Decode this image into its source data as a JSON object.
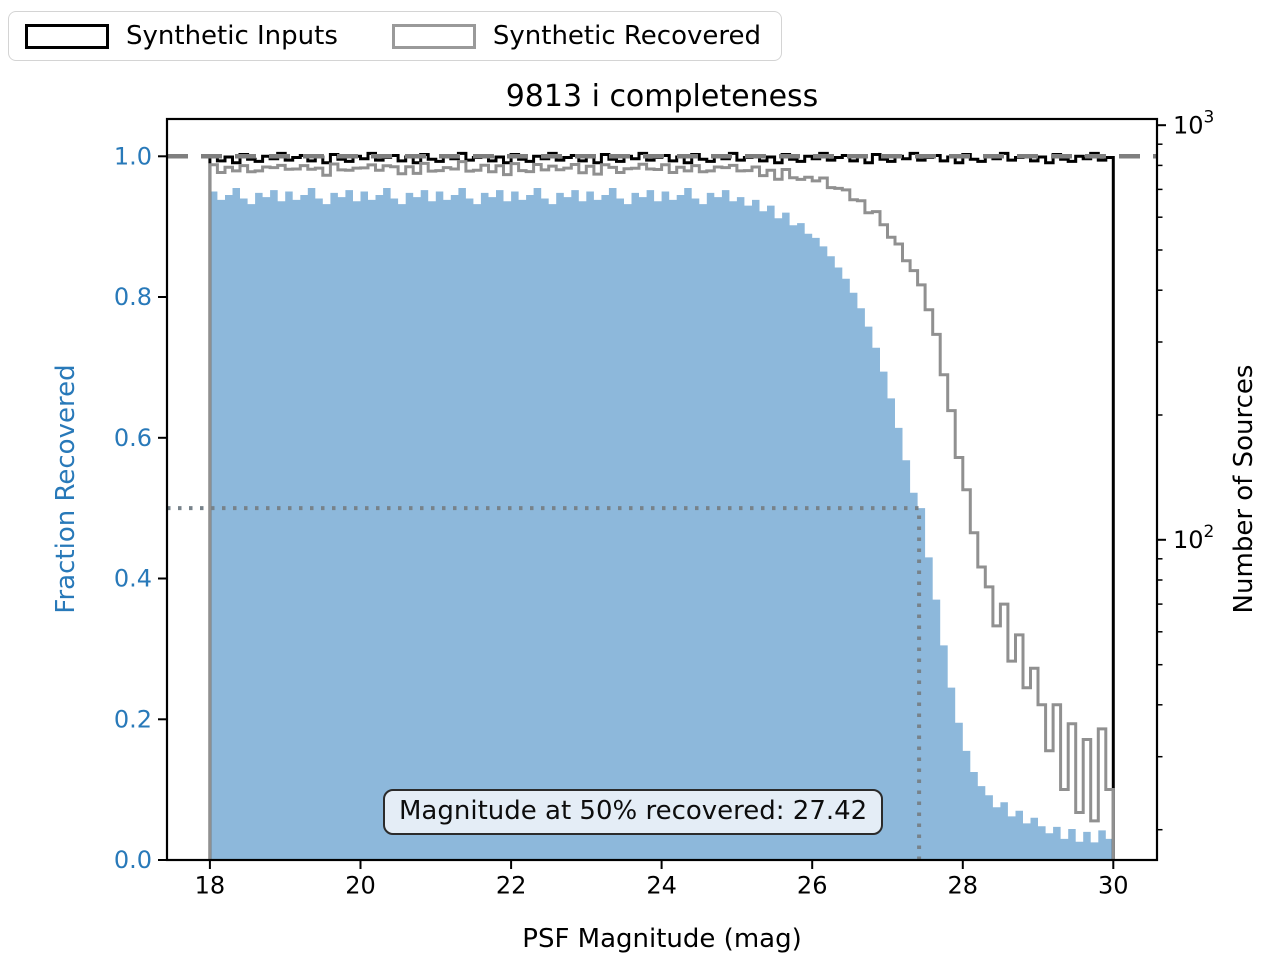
{
  "figure": {
    "title": "9813 i completeness",
    "annotation": "Magnitude at 50% recovered: 27.42",
    "legend": [
      {
        "label": "Synthetic Inputs",
        "color": "#000000"
      },
      {
        "label": "Synthetic Recovered",
        "color": "#9a9a9a"
      }
    ],
    "colors": {
      "fraction_fill": "#8db8db",
      "inputs_line": "#000000",
      "recovered_line": "#909090",
      "dashed_reference": "#7f7f7f",
      "dotted_crosshair": "#77828a",
      "left_axis_text": "#2879b9"
    }
  },
  "chart_data": {
    "type": "bar",
    "subtype": "completeness-histogram-with-log-count-steps",
    "title": "9813 i completeness",
    "xlabel": "PSF Magnitude (mag)",
    "ylabel_left": "Fraction Recovered",
    "ylabel_right": "Number of Sources",
    "xlim": [
      17.43,
      30.58
    ],
    "ylim_left": [
      0.0,
      1.053
    ],
    "ylim_right_log": [
      16.9,
      1035
    ],
    "grid": false,
    "legend_position": "upper-left-outside",
    "x_ticks": [
      18,
      20,
      22,
      24,
      26,
      28,
      30
    ],
    "y_ticks_left": [
      0.0,
      0.2,
      0.4,
      0.6,
      0.8,
      1.0
    ],
    "y_ticks_right_major": [
      {
        "value": 1000,
        "base": "10",
        "exponent": "3"
      },
      {
        "value": 100,
        "base": "10",
        "exponent": "2"
      }
    ],
    "y_ticks_right_minor": [
      900,
      800,
      700,
      600,
      500,
      400,
      300,
      200,
      90,
      80,
      70,
      60,
      50,
      40,
      30,
      20
    ],
    "bin_start": 18.0,
    "bin_width": 0.1,
    "bin_count": 120,
    "mag_50_recovered": 27.42,
    "reference_lines": {
      "dashed_fraction": 1.0,
      "dotted_fraction": 0.5,
      "dotted_magnitude": 27.42
    },
    "series": [
      {
        "name": "Synthetic Inputs",
        "axis": "right",
        "style": "step",
        "color": "#000000",
        "values": [
          845,
          820,
          838,
          812,
          850,
          828,
          818,
          842,
          830,
          855,
          824,
          836,
          845,
          820,
          838,
          812,
          850,
          828,
          818,
          842,
          830,
          855,
          824,
          836,
          845,
          820,
          838,
          812,
          850,
          828,
          818,
          842,
          830,
          855,
          824,
          836,
          845,
          820,
          838,
          812,
          850,
          828,
          818,
          842,
          830,
          855,
          824,
          836,
          845,
          820,
          838,
          812,
          850,
          828,
          818,
          842,
          830,
          855,
          824,
          836,
          845,
          820,
          838,
          812,
          850,
          828,
          818,
          842,
          830,
          855,
          824,
          836,
          845,
          820,
          838,
          812,
          850,
          828,
          818,
          842,
          830,
          855,
          824,
          836,
          845,
          820,
          838,
          812,
          850,
          828,
          818,
          842,
          830,
          855,
          824,
          836,
          845,
          820,
          838,
          812,
          850,
          828,
          818,
          842,
          830,
          855,
          824,
          836,
          845,
          820,
          838,
          812,
          850,
          828,
          818,
          842,
          830,
          855,
          824,
          836
        ]
      },
      {
        "name": "Synthetic Recovered",
        "axis": "right",
        "style": "step",
        "color": "#909090",
        "values": [
          803,
          769,
          792,
          776,
          799,
          772,
          776,
          793,
          790,
          800,
          783,
          784,
          799,
          783,
          788,
          757,
          806,
          780,
          779,
          788,
          789,
          802,
          779,
          798,
          794,
          764,
          794,
          765,
          809,
          775,
          777,
          790,
          784,
          817,
          775,
          779,
          801,
          772,
          798,
          760,
          808,
          777,
          773,
          804,
          780,
          797,
          781,
          788,
          804,
          768,
          796,
          762,
          803,
          791,
          769,
          785,
          787,
          805,
          784,
          782,
          803,
          769,
          792,
          776,
          799,
          772,
          776,
          793,
          790,
          800,
          776,
          777,
          793,
          756,
          779,
          741,
          782,
          747,
          740,
          749,
          734,
          746,
          707,
          704,
          698,
          661,
          657,
          615,
          619,
          575,
          537,
          517,
          471,
          446,
          412,
          359,
          313,
          250,
          205,
          158,
          132,
          104,
          86,
          77,
          62,
          70,
          51,
          59,
          44,
          49,
          40,
          31,
          40,
          25,
          36,
          22,
          33,
          21,
          35,
          25
        ]
      },
      {
        "name": "Fraction Recovered",
        "axis": "left",
        "style": "filled-histogram",
        "color": "#8db8db",
        "values": [
          0.95,
          0.938,
          0.945,
          0.955,
          0.94,
          0.932,
          0.948,
          0.942,
          0.952,
          0.936,
          0.95,
          0.938,
          0.945,
          0.955,
          0.94,
          0.932,
          0.948,
          0.942,
          0.952,
          0.936,
          0.95,
          0.938,
          0.945,
          0.955,
          0.94,
          0.932,
          0.948,
          0.942,
          0.952,
          0.936,
          0.95,
          0.938,
          0.945,
          0.955,
          0.94,
          0.932,
          0.948,
          0.942,
          0.952,
          0.936,
          0.95,
          0.938,
          0.945,
          0.955,
          0.94,
          0.932,
          0.948,
          0.942,
          0.952,
          0.936,
          0.95,
          0.938,
          0.945,
          0.955,
          0.94,
          0.932,
          0.948,
          0.942,
          0.952,
          0.936,
          0.95,
          0.938,
          0.945,
          0.955,
          0.94,
          0.932,
          0.948,
          0.942,
          0.952,
          0.936,
          0.942,
          0.93,
          0.938,
          0.922,
          0.93,
          0.912,
          0.92,
          0.902,
          0.905,
          0.89,
          0.884,
          0.872,
          0.858,
          0.842,
          0.826,
          0.806,
          0.784,
          0.758,
          0.728,
          0.694,
          0.656,
          0.614,
          0.568,
          0.522,
          0.5,
          0.43,
          0.37,
          0.305,
          0.245,
          0.195,
          0.155,
          0.125,
          0.105,
          0.092,
          0.075,
          0.082,
          0.062,
          0.07,
          0.052,
          0.06,
          0.048,
          0.038,
          0.047,
          0.03,
          0.044,
          0.026,
          0.04,
          0.025,
          0.042,
          0.03
        ]
      }
    ]
  }
}
